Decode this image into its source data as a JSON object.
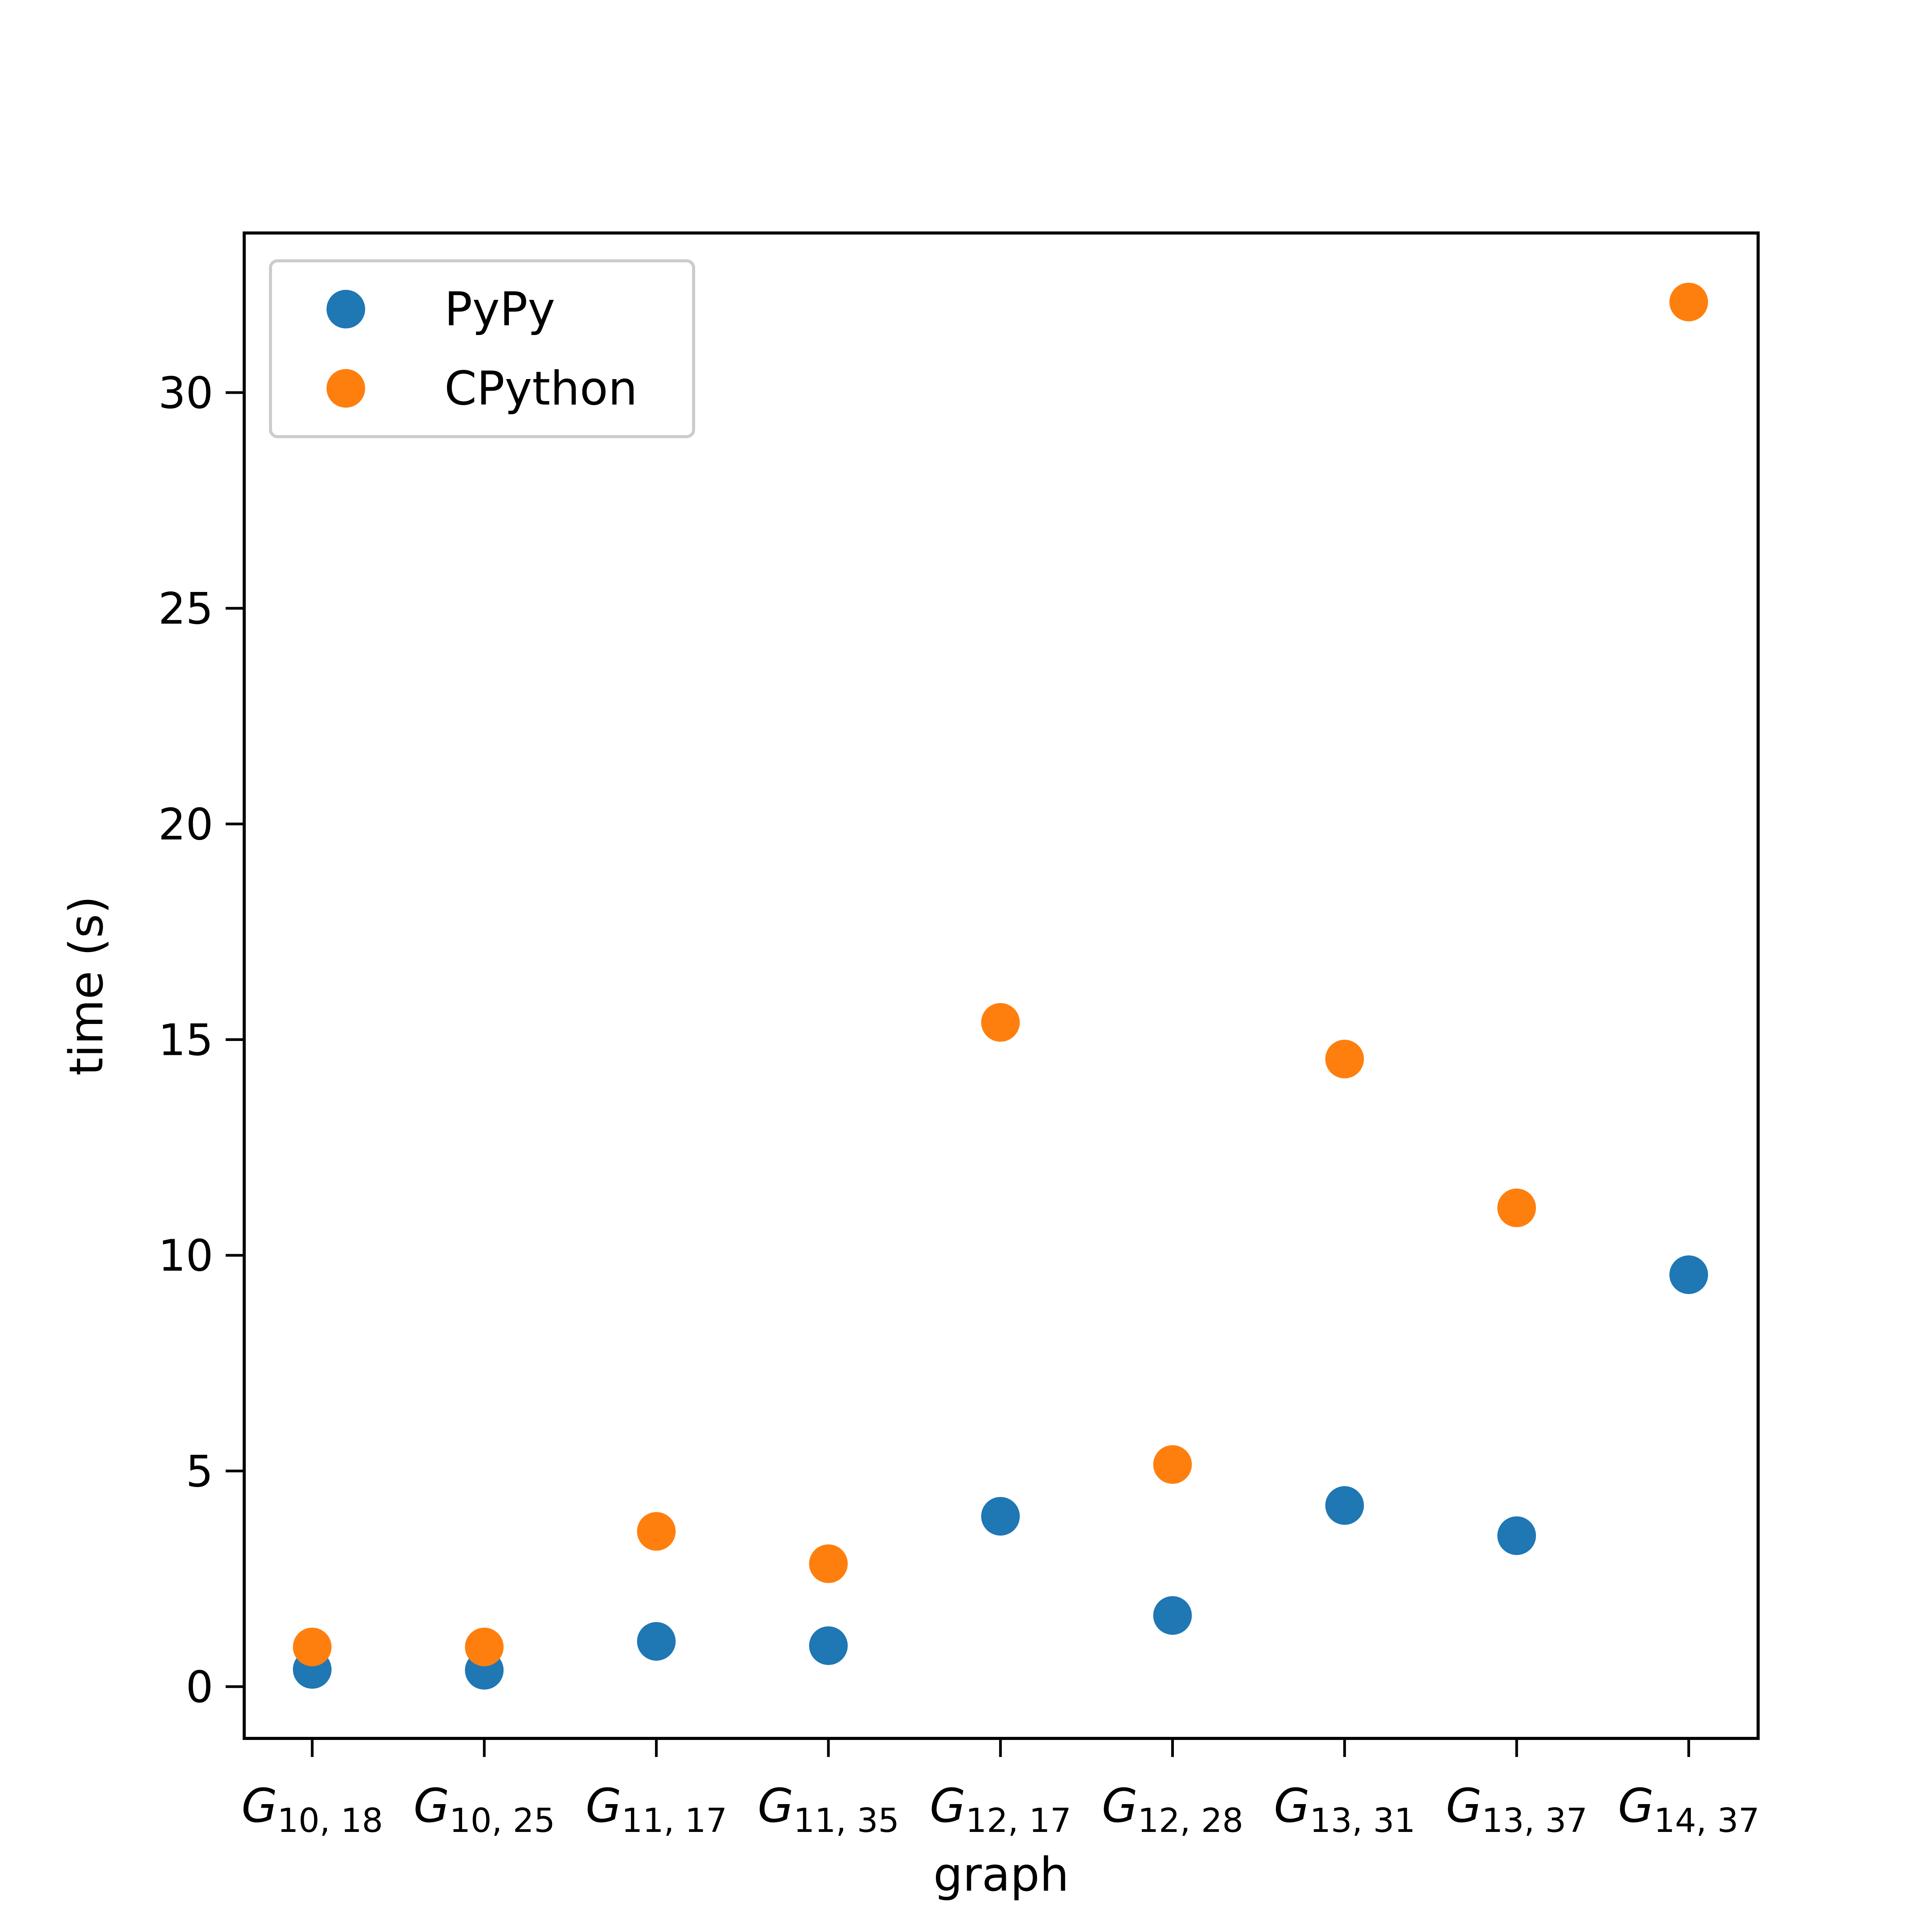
{
  "chart_data": {
    "type": "scatter",
    "title": "",
    "xlabel": "graph",
    "ylabel": "time (s)",
    "categories": [
      {
        "base": "G",
        "sub": "10, 18"
      },
      {
        "base": "G",
        "sub": "10, 25"
      },
      {
        "base": "G",
        "sub": "11, 17"
      },
      {
        "base": "G",
        "sub": "11, 35"
      },
      {
        "base": "G",
        "sub": "12, 17"
      },
      {
        "base": "G",
        "sub": "12, 28"
      },
      {
        "base": "G",
        "sub": "13, 31"
      },
      {
        "base": "G",
        "sub": "13, 37"
      },
      {
        "base": "G",
        "sub": "14, 37"
      }
    ],
    "series": [
      {
        "name": "PyPy",
        "color": "#1f77b4",
        "values": [
          0.4,
          0.38,
          1.05,
          0.95,
          3.95,
          1.65,
          4.2,
          3.5,
          9.55
        ]
      },
      {
        "name": "CPython",
        "color": "#ff7f0e",
        "values": [
          0.92,
          0.92,
          3.6,
          2.85,
          15.4,
          5.15,
          14.55,
          11.1,
          32.1
        ]
      }
    ],
    "ylim": [
      -1.2,
      33.7
    ],
    "yticks": [
      0,
      5,
      10,
      15,
      20,
      25,
      30
    ],
    "grid": false,
    "legend_position": "top-left"
  }
}
